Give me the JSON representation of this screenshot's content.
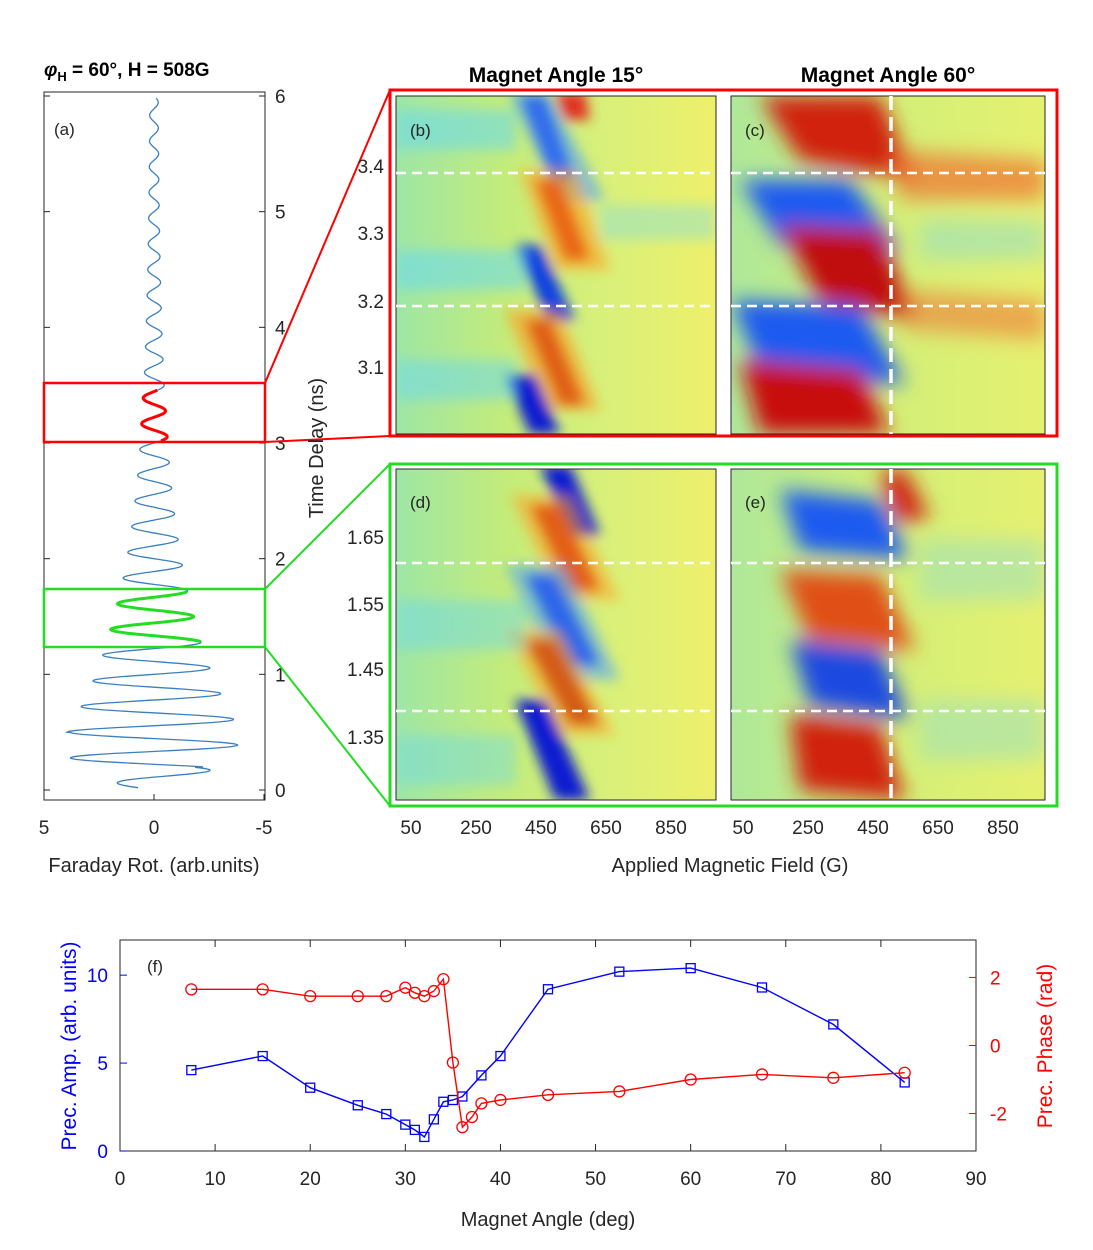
{
  "panel_a": {
    "title_phi": "φ",
    "title_sub": "H",
    "title_rest": " = 60°, H = 508G",
    "label": "(a)",
    "xlabel": "Faraday Rot. (arb.units)",
    "xticks": [
      "5",
      "0",
      "-5"
    ],
    "yticks": [
      "0",
      "1",
      "2",
      "3",
      "4",
      "5",
      "6"
    ],
    "ylabel": "Time Delay (ns)"
  },
  "maps": {
    "col_titles": [
      "Magnet Angle 15°",
      "Magnet Angle 60°"
    ],
    "labels": [
      "(b)",
      "(c)",
      "(d)",
      "(e)"
    ],
    "top_yticks": [
      "3.1",
      "3.2",
      "3.3",
      "3.4"
    ],
    "bottom_yticks": [
      "1.35",
      "1.45",
      "1.55",
      "1.65"
    ],
    "xticks": [
      "50",
      "250",
      "450",
      "650",
      "850"
    ],
    "xlabel": "Applied Magnetic Field (G)"
  },
  "colors": {
    "trace": "#3a7fc0",
    "highlight_top": "#ff0000",
    "highlight_bottom": "#22dd22",
    "amp_series": "#0000ff",
    "phase_series": "#ff0000"
  },
  "chart_data": {
    "type": "line",
    "label": "(f)",
    "xlabel": "Magnet Angle (deg)",
    "ylabel_left": "Prec. Amp. (arb. units)",
    "ylabel_right": "Prec. Phase (rad)",
    "xlim": [
      0,
      90
    ],
    "ylim_left": [
      0,
      12
    ],
    "ylim_right": [
      -3.1,
      3.1
    ],
    "xticks": [
      "0",
      "10",
      "20",
      "30",
      "40",
      "50",
      "60",
      "70",
      "80",
      "90"
    ],
    "yticks_left": [
      "0",
      "5",
      "10"
    ],
    "yticks_right": [
      "-2",
      "0",
      "2"
    ],
    "series": [
      {
        "name": "Prec. Amp.",
        "axis": "left",
        "marker": "square",
        "x": [
          7.5,
          15,
          20,
          25,
          28,
          30,
          31,
          32,
          33,
          34,
          35,
          36,
          38,
          40,
          45,
          52.5,
          60,
          67.5,
          75,
          82.5
        ],
        "values": [
          4.6,
          5.4,
          3.6,
          2.6,
          2.1,
          1.5,
          1.2,
          0.8,
          1.8,
          2.8,
          2.9,
          3.1,
          4.3,
          5.4,
          9.2,
          10.2,
          10.4,
          9.3,
          7.2,
          3.9
        ]
      },
      {
        "name": "Prec. Phase",
        "axis": "right",
        "marker": "circle",
        "x": [
          7.5,
          15,
          20,
          25,
          28,
          30,
          31,
          32,
          33,
          34,
          35,
          36,
          37,
          38,
          40,
          45,
          52.5,
          60,
          67.5,
          75,
          82.5
        ],
        "values": [
          1.65,
          1.65,
          1.45,
          1.45,
          1.45,
          1.7,
          1.55,
          1.45,
          1.6,
          1.95,
          -0.5,
          -2.4,
          -2.1,
          -1.7,
          -1.6,
          -1.45,
          -1.35,
          -1.0,
          -0.85,
          -0.95,
          -0.8
        ]
      }
    ]
  }
}
